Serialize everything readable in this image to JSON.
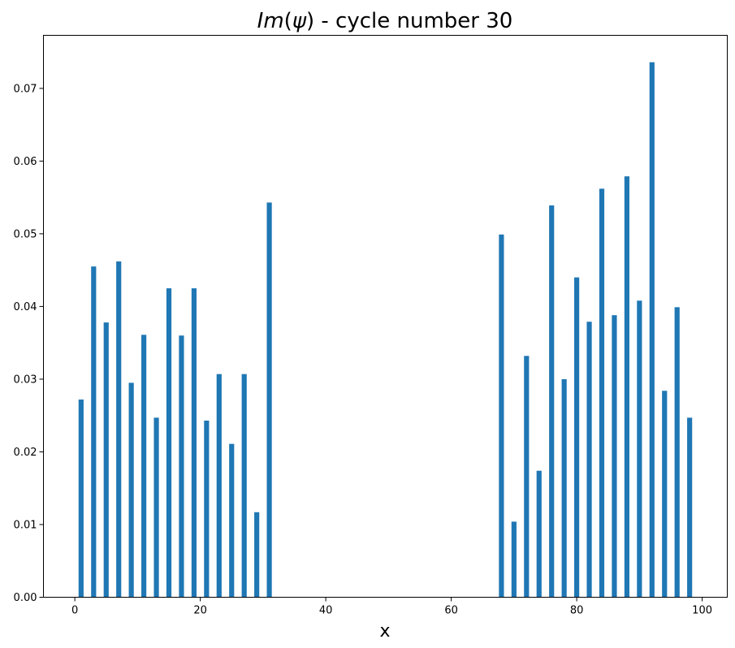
{
  "chart_data": {
    "type": "bar",
    "title": "Im(ψ) - cycle number 30",
    "title_parts": {
      "italic": "Im",
      "open": "(",
      "psi": "ψ",
      "close": ")",
      "rest": " - cycle number 30"
    },
    "xlabel": "x",
    "ylabel": "",
    "xlim": [
      -5,
      104
    ],
    "ylim": [
      0,
      0.0773
    ],
    "bar_width": 0.8,
    "bar_color": "#1f77b4",
    "grid": false,
    "legend": "none",
    "xticks": [
      0,
      20,
      40,
      60,
      80,
      100
    ],
    "xtick_labels": [
      "0",
      "20",
      "40",
      "60",
      "80",
      "100"
    ],
    "yticks": [
      0.0,
      0.01,
      0.02,
      0.03,
      0.04,
      0.05,
      0.06,
      0.07
    ],
    "ytick_labels": [
      "0.00",
      "0.01",
      "0.02",
      "0.03",
      "0.04",
      "0.05",
      "0.06",
      "0.07"
    ],
    "x": [
      1,
      3,
      5,
      7,
      9,
      11,
      13,
      15,
      17,
      19,
      21,
      23,
      25,
      27,
      29,
      31,
      68,
      70,
      72,
      74,
      76,
      78,
      80,
      82,
      84,
      86,
      88,
      90,
      92,
      94,
      96,
      98
    ],
    "values": [
      0.0272,
      0.0455,
      0.0378,
      0.0462,
      0.0295,
      0.0361,
      0.0247,
      0.0425,
      0.036,
      0.0425,
      0.0243,
      0.0307,
      0.0211,
      0.0307,
      0.0117,
      0.0543,
      0.0499,
      0.0104,
      0.0332,
      0.0174,
      0.0539,
      0.03,
      0.044,
      0.0379,
      0.0562,
      0.0388,
      0.0579,
      0.0408,
      0.0736,
      0.0284,
      0.0399,
      0.0247
    ]
  }
}
